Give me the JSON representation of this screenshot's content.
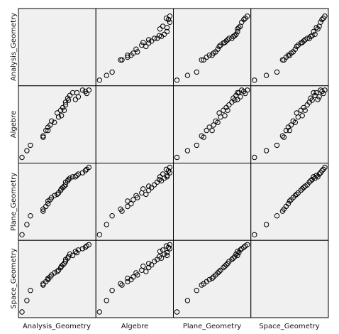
{
  "chart_data": {
    "type": "scatter",
    "variables": [
      "Analysis_Geometry",
      "Algebre",
      "Plane_Geometry",
      "Space_Geometry"
    ],
    "note_scale": "normalized_0_to_1",
    "students": {
      "Analysis_Geometry": [
        0.0,
        0.07,
        0.12,
        0.3,
        0.3,
        0.34,
        0.37,
        0.37,
        0.4,
        0.42,
        0.46,
        0.5,
        0.52,
        0.55,
        0.56,
        0.58,
        0.6,
        0.62,
        0.62,
        0.65,
        0.66,
        0.68,
        0.72,
        0.76,
        0.78,
        0.8,
        0.86,
        0.9,
        0.92,
        0.95
      ],
      "Algebre": [
        0.0,
        0.1,
        0.18,
        0.32,
        0.3,
        0.4,
        0.45,
        0.4,
        0.48,
        0.54,
        0.52,
        0.66,
        0.6,
        0.7,
        0.62,
        0.74,
        0.7,
        0.78,
        0.82,
        0.88,
        0.85,
        0.92,
        0.96,
        0.86,
        0.96,
        0.9,
        1.0,
        0.98,
        0.95,
        1.0
      ],
      "Plane_Geometry": [
        0.0,
        0.15,
        0.28,
        0.35,
        0.38,
        0.42,
        0.46,
        0.5,
        0.52,
        0.55,
        0.58,
        0.6,
        0.62,
        0.66,
        0.68,
        0.7,
        0.72,
        0.74,
        0.78,
        0.8,
        0.82,
        0.84,
        0.86,
        0.86,
        0.88,
        0.9,
        0.92,
        0.95,
        0.97,
        1.0
      ],
      "Space_Geometry": [
        0.0,
        0.17,
        0.32,
        0.4,
        0.42,
        0.45,
        0.48,
        0.5,
        0.52,
        0.55,
        0.58,
        0.6,
        0.62,
        0.66,
        0.68,
        0.7,
        0.72,
        0.75,
        0.78,
        0.8,
        0.82,
        0.86,
        0.84,
        0.9,
        0.88,
        0.92,
        0.94,
        0.96,
        0.98,
        1.0
      ]
    },
    "diagonal_empty": true,
    "grid": false,
    "panel_color": "#f0f0f0",
    "border_color": "#000000",
    "marker_color": "#000000"
  }
}
